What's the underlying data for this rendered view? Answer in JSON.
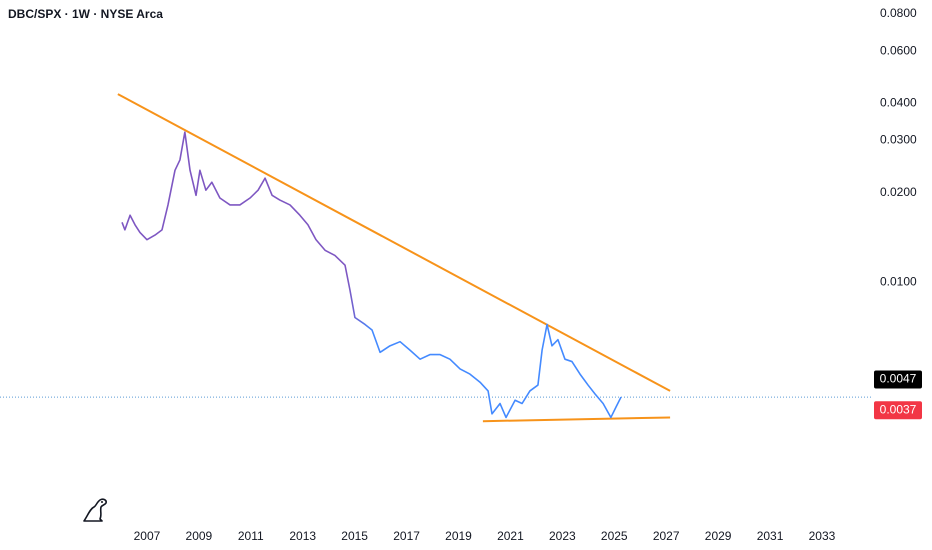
{
  "chart_data": {
    "type": "line",
    "title": "DBC/SPX · 1W · NYSE Arca",
    "log_scale": true,
    "colors": [
      "#7e57c2",
      "#448aff"
    ],
    "x": [
      2006.04,
      2006.15,
      2006.35,
      2006.54,
      2006.73,
      2007.0,
      2007.31,
      2007.58,
      2007.81,
      2008.08,
      2008.27,
      2008.46,
      2008.66,
      2008.89,
      2009.04,
      2009.27,
      2009.5,
      2009.81,
      2010.2,
      2010.58,
      2010.97,
      2011.28,
      2011.55,
      2011.82,
      2012.12,
      2012.51,
      2012.89,
      2013.2,
      2013.51,
      2013.86,
      2014.24,
      2014.63,
      2014.82,
      2015.01,
      2015.4,
      2015.67,
      2015.98,
      2016.36,
      2016.75,
      2017.13,
      2017.52,
      2017.9,
      2018.29,
      2018.67,
      2019.06,
      2019.44,
      2019.83,
      2020.14,
      2020.29,
      2020.6,
      2020.83,
      2021.18,
      2021.45,
      2021.75,
      2022.06,
      2022.22,
      2022.41,
      2022.6,
      2022.83,
      2023.1,
      2023.37,
      2023.68,
      2023.99,
      2024.26,
      2024.57,
      2024.87,
      2025.07,
      2025.26
    ],
    "values": [
      0.0159,
      0.015,
      0.0168,
      0.0156,
      0.0147,
      0.0139,
      0.0144,
      0.015,
      0.0182,
      0.0238,
      0.0258,
      0.032,
      0.0238,
      0.0196,
      0.0238,
      0.0204,
      0.0217,
      0.0192,
      0.0182,
      0.0182,
      0.0192,
      0.0204,
      0.0224,
      0.0196,
      0.0189,
      0.0182,
      0.0168,
      0.0156,
      0.0139,
      0.0128,
      0.0123,
      0.0114,
      0.0094,
      0.0076,
      0.0072,
      0.0069,
      0.0058,
      0.0061,
      0.0063,
      0.0059,
      0.0055,
      0.0057,
      0.0057,
      0.0055,
      0.0051,
      0.0049,
      0.0046,
      0.0043,
      0.0036,
      0.0039,
      0.0035,
      0.004,
      0.0039,
      0.0043,
      0.0045,
      0.0059,
      0.0072,
      0.0061,
      0.0064,
      0.0055,
      0.0054,
      0.0049,
      0.0045,
      0.0042,
      0.0039,
      0.0035,
      0.0038,
      0.0041
    ],
    "trendlines": [
      {
        "color": "#f7931a",
        "x": [
          2005.88,
          2027.15
        ],
        "values": [
          0.043,
          0.0043
        ]
      },
      {
        "color": "#f7931a",
        "x": [
          2019.94,
          2027.15
        ],
        "values": [
          0.0034,
          0.0035
        ]
      }
    ],
    "price_line": 0.0041,
    "price_labels": [
      {
        "value": 0.0047,
        "color": "#000000"
      },
      {
        "value": 0.0037,
        "color": "#f23645"
      }
    ],
    "xlim": [
      2001.34,
      2034.85
    ],
    "xticks": [
      2007,
      2009,
      2011,
      2013,
      2015,
      2017,
      2019,
      2021,
      2023,
      2025,
      2027,
      2029,
      2031,
      2033
    ],
    "ylim": [
      0.00158,
      0.0892
    ],
    "yticks": [
      {
        "value": 0.08,
        "label": "0.0800"
      },
      {
        "value": 0.06,
        "label": "0.0600"
      },
      {
        "value": 0.04,
        "label": "0.0400"
      },
      {
        "value": 0.03,
        "label": "0.0300"
      },
      {
        "value": 0.02,
        "label": "0.0200"
      },
      {
        "value": 0.01,
        "label": "0.0100"
      }
    ]
  }
}
